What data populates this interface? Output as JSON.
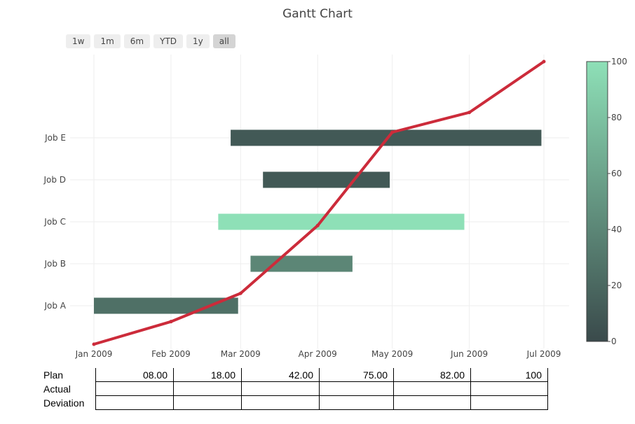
{
  "chart_data": {
    "type": "gantt",
    "title": "Gantt Chart",
    "range_buttons": [
      "1w",
      "1m",
      "6m",
      "YTD",
      "1y",
      "all"
    ],
    "active_range": "all",
    "tasks": [
      {
        "name": "Job A",
        "start": "2009-01-01",
        "end": "2009-02-28",
        "value": 25
      },
      {
        "name": "Job B",
        "start": "2009-03-05",
        "end": "2009-04-15",
        "value": 40
      },
      {
        "name": "Job C",
        "start": "2009-02-20",
        "end": "2009-05-30",
        "value": 100
      },
      {
        "name": "Job D",
        "start": "2009-03-10",
        "end": "2009-04-30",
        "value": 10
      },
      {
        "name": "Job E",
        "start": "2009-02-25",
        "end": "2009-06-30",
        "value": 10
      }
    ],
    "x_ticks": [
      "Jan 2009",
      "Feb 2009",
      "Mar 2009",
      "Apr 2009",
      "May 2009",
      "Jun 2009",
      "Jul 2009"
    ],
    "line_series": {
      "x": [
        "2009-01-01",
        "2009-02-01",
        "2009-03-01",
        "2009-04-01",
        "2009-05-01",
        "2009-06-01",
        "2009-07-01"
      ],
      "y": [
        0,
        8,
        18,
        42,
        75,
        82,
        100
      ],
      "color": "#cc2b3a"
    },
    "colorbar": {
      "min": 0,
      "max": 100,
      "ticks": [
        0,
        20,
        40,
        60,
        80,
        100
      ],
      "low_color": "#3a4a4b",
      "high_color": "#8ee0b7"
    },
    "grid": true
  },
  "table": {
    "rows": [
      {
        "label": "Plan",
        "values": [
          "08.00",
          "18.00",
          "42.00",
          "75.00",
          "82.00",
          "100"
        ]
      },
      {
        "label": "Actual",
        "values": [
          "",
          "",
          "",
          "",
          "",
          ""
        ]
      },
      {
        "label": "Deviation",
        "values": [
          "",
          "",
          "",
          "",
          "",
          ""
        ]
      }
    ]
  }
}
